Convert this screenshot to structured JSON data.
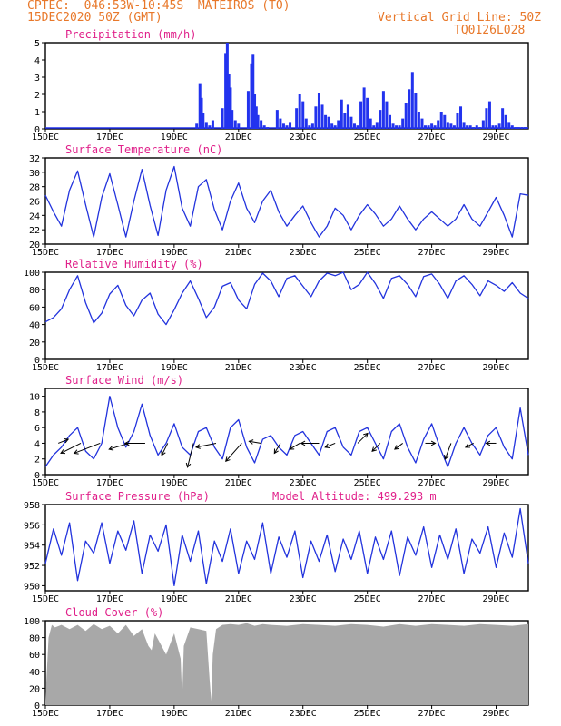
{
  "header": {
    "line1": "CPTEC:  046:53W-10:45S  MATEIROS (TO)",
    "line2": "15DEC2020 50Z (GMT)",
    "grid_note": "Vertical Grid Line: 50Z",
    "code": "TQ0126L028"
  },
  "colors": {
    "header": "#e8782a",
    "title": "#e0208a",
    "line": "#2233dd",
    "bar": "#2233ee",
    "cloud": "#a8a8a8",
    "arrow": "#000000"
  },
  "x_tick_labels": [
    "15DEC",
    "17DEC",
    "19DEC",
    "21DEC",
    "23DEC",
    "25DEC",
    "27DEC",
    "29DEC"
  ],
  "chart_data": [
    {
      "id": "precipitation",
      "type": "bar",
      "title": "Precipitation (mm/h)",
      "ylim": [
        0,
        5
      ],
      "yticks": [
        0,
        1,
        2,
        3,
        4,
        5
      ],
      "x_unit": "days since 15DEC 00Z",
      "xlim": [
        0,
        15
      ],
      "x": [
        4.7,
        4.8,
        4.85,
        4.9,
        5.0,
        5.1,
        5.2,
        5.5,
        5.6,
        5.65,
        5.7,
        5.75,
        5.8,
        5.9,
        6.0,
        6.3,
        6.4,
        6.45,
        6.5,
        6.55,
        6.6,
        6.7,
        6.8,
        6.9,
        7.2,
        7.3,
        7.4,
        7.5,
        7.6,
        7.8,
        7.9,
        8.0,
        8.1,
        8.2,
        8.3,
        8.4,
        8.5,
        8.6,
        8.7,
        8.8,
        8.9,
        9.0,
        9.1,
        9.2,
        9.3,
        9.4,
        9.5,
        9.6,
        9.7,
        9.8,
        9.9,
        10.0,
        10.1,
        10.2,
        10.3,
        10.4,
        10.5,
        10.6,
        10.7,
        10.8,
        10.9,
        11.0,
        11.1,
        11.2,
        11.3,
        11.4,
        11.5,
        11.6,
        11.7,
        11.8,
        11.9,
        12.0,
        12.1,
        12.2,
        12.3,
        12.4,
        12.5,
        12.6,
        12.7,
        12.8,
        12.9,
        13.0,
        13.1,
        13.2,
        13.3,
        13.4,
        13.5,
        13.6,
        13.7,
        13.8,
        13.9,
        14.0,
        14.1,
        14.2,
        14.3,
        14.4,
        14.5,
        14.6,
        14.7,
        14.8,
        14.9
      ],
      "values": [
        0.3,
        2.6,
        1.8,
        0.9,
        0.4,
        0.2,
        0.5,
        1.2,
        4.4,
        5.0,
        3.2,
        2.4,
        1.1,
        0.5,
        0.3,
        2.2,
        3.8,
        4.3,
        2.0,
        1.3,
        0.8,
        0.5,
        0.2,
        0.1,
        1.1,
        0.6,
        0.3,
        0.2,
        0.4,
        1.2,
        2.0,
        1.6,
        0.6,
        0.2,
        0.3,
        1.3,
        2.1,
        1.4,
        0.8,
        0.7,
        0.3,
        0.2,
        0.5,
        1.7,
        0.9,
        1.4,
        0.7,
        0.3,
        0.2,
        1.6,
        2.4,
        1.8,
        0.6,
        0.2,
        0.4,
        1.1,
        2.2,
        1.6,
        0.8,
        0.3,
        0.2,
        0.2,
        0.6,
        1.5,
        2.3,
        3.3,
        2.1,
        1.0,
        0.6,
        0.2,
        0.2,
        0.3,
        0.2,
        0.5,
        1.0,
        0.8,
        0.4,
        0.3,
        0.2,
        0.9,
        1.3,
        0.4,
        0.2,
        0.2,
        0.1,
        0.2,
        0.1,
        0.5,
        1.2,
        1.6,
        0.2,
        0.2,
        0.3,
        1.2,
        0.8,
        0.4,
        0.2,
        0.1,
        0.1,
        0.1,
        0.1
      ]
    },
    {
      "id": "temperature",
      "type": "line",
      "title": "Surface Temperature (nC)",
      "ylim": [
        20,
        32
      ],
      "yticks": [
        20,
        22,
        24,
        26,
        28,
        30,
        32
      ],
      "x_unit": "days since 15DEC 00Z",
      "xlim": [
        0,
        15
      ],
      "x": [
        0,
        0.25,
        0.5,
        0.75,
        1,
        1.25,
        1.5,
        1.75,
        2,
        2.25,
        2.5,
        2.75,
        3,
        3.25,
        3.5,
        3.75,
        4,
        4.25,
        4.5,
        4.75,
        5,
        5.25,
        5.5,
        5.75,
        6,
        6.25,
        6.5,
        6.75,
        7,
        7.25,
        7.5,
        7.75,
        8,
        8.25,
        8.5,
        8.75,
        9,
        9.25,
        9.5,
        9.75,
        10,
        10.25,
        10.5,
        10.75,
        11,
        11.25,
        11.5,
        11.75,
        12,
        12.25,
        12.5,
        12.75,
        13,
        13.25,
        13.5,
        13.75,
        14,
        14.25,
        14.5,
        14.75,
        15
      ],
      "values": [
        26.8,
        24.5,
        22.5,
        27.5,
        30.2,
        25.5,
        21.0,
        26.5,
        29.8,
        25.5,
        21.0,
        26.0,
        30.4,
        25.4,
        21.2,
        27.5,
        30.8,
        25.0,
        22.5,
        28.0,
        29.0,
        24.8,
        22.0,
        26.0,
        28.5,
        25.0,
        23.0,
        26.0,
        27.5,
        24.5,
        22.5,
        24.0,
        25.3,
        23.0,
        21.0,
        22.5,
        25.0,
        24.0,
        22.0,
        24.0,
        25.5,
        24.2,
        22.5,
        23.5,
        25.3,
        23.5,
        22.0,
        23.5,
        24.5,
        23.5,
        22.5,
        23.5,
        25.5,
        23.5,
        22.5,
        24.5,
        26.5,
        24.0,
        21.0,
        27.0,
        26.8
      ]
    },
    {
      "id": "humidity",
      "type": "line",
      "title": "Relative Humidity (%)",
      "ylim": [
        0,
        100
      ],
      "yticks": [
        0,
        20,
        40,
        60,
        80,
        100
      ],
      "x_unit": "days since 15DEC 00Z",
      "xlim": [
        0,
        15
      ],
      "x": [
        0,
        0.25,
        0.5,
        0.75,
        1,
        1.25,
        1.5,
        1.75,
        2,
        2.25,
        2.5,
        2.75,
        3,
        3.25,
        3.5,
        3.75,
        4,
        4.25,
        4.5,
        4.75,
        5,
        5.25,
        5.5,
        5.75,
        6,
        6.25,
        6.5,
        6.75,
        7,
        7.25,
        7.5,
        7.75,
        8,
        8.25,
        8.5,
        8.75,
        9,
        9.25,
        9.5,
        9.75,
        10,
        10.25,
        10.5,
        10.75,
        11,
        11.25,
        11.5,
        11.75,
        12,
        12.25,
        12.5,
        12.75,
        13,
        13.25,
        13.5,
        13.75,
        14,
        14.25,
        14.5,
        14.75,
        15
      ],
      "values": [
        43,
        48,
        58,
        80,
        96,
        65,
        42,
        53,
        75,
        85,
        62,
        50,
        68,
        76,
        52,
        40,
        57,
        76,
        90,
        70,
        48,
        60,
        84,
        88,
        68,
        58,
        86,
        99,
        90,
        72,
        93,
        96,
        84,
        72,
        90,
        99,
        96,
        100,
        80,
        86,
        100,
        87,
        70,
        93,
        96,
        86,
        72,
        95,
        98,
        86,
        70,
        90,
        96,
        86,
        73,
        90,
        85,
        78,
        88,
        76,
        70
      ]
    },
    {
      "id": "wind",
      "type": "line",
      "title": "Surface Wind (m/s)",
      "ylim": [
        0,
        11
      ],
      "yticks": [
        0,
        2,
        4,
        6,
        8,
        10
      ],
      "x_unit": "days since 15DEC 00Z",
      "xlim": [
        0,
        15
      ],
      "x": [
        0,
        0.25,
        0.5,
        0.75,
        1,
        1.25,
        1.5,
        1.75,
        2,
        2.25,
        2.5,
        2.75,
        3,
        3.25,
        3.5,
        3.75,
        4,
        4.25,
        4.5,
        4.75,
        5,
        5.25,
        5.5,
        5.75,
        6,
        6.25,
        6.5,
        6.75,
        7,
        7.25,
        7.5,
        7.75,
        8,
        8.25,
        8.5,
        8.75,
        9,
        9.25,
        9.5,
        9.75,
        10,
        10.25,
        10.5,
        10.75,
        11,
        11.25,
        11.5,
        11.75,
        12,
        12.25,
        12.5,
        12.75,
        13,
        13.25,
        13.5,
        13.75,
        14,
        14.25,
        14.5,
        14.75,
        15
      ],
      "values": [
        1,
        2.5,
        3.5,
        5,
        6,
        3,
        2,
        4,
        10,
        6,
        3.5,
        5.5,
        9,
        5,
        2.5,
        4,
        6.5,
        3.5,
        2.5,
        5.5,
        6,
        3.5,
        2,
        6,
        7,
        3.5,
        1.5,
        4.5,
        5,
        3.5,
        2.5,
        5,
        5.5,
        4,
        2.5,
        5.5,
        6,
        3.5,
        2.5,
        5.5,
        6,
        4,
        2,
        5.5,
        6.5,
        3.5,
        1.5,
        4.5,
        6.5,
        3.5,
        1,
        4,
        6,
        4,
        2.5,
        5,
        6,
        3.5,
        2,
        8.5,
        2.5
      ],
      "arrows": [
        {
          "x": 0.4,
          "u": 0.5,
          "v": 0.2
        },
        {
          "x": 1.1,
          "u": -1.0,
          "v": -0.5
        },
        {
          "x": 1.7,
          "u": -1.3,
          "v": -0.5
        },
        {
          "x": 2.6,
          "u": -1.0,
          "v": -0.3
        },
        {
          "x": 3.1,
          "u": -1.0,
          "v": 0.0
        },
        {
          "x": 3.8,
          "u": -0.3,
          "v": -0.6
        },
        {
          "x": 4.6,
          "u": -0.3,
          "v": -1.2
        },
        {
          "x": 5.3,
          "u": -1.0,
          "v": -0.2
        },
        {
          "x": 6.1,
          "u": -0.8,
          "v": -0.9
        },
        {
          "x": 6.7,
          "u": -0.6,
          "v": 0.1
        },
        {
          "x": 7.3,
          "u": -0.3,
          "v": -0.5
        },
        {
          "x": 7.9,
          "u": -0.5,
          "v": -0.3
        },
        {
          "x": 8.5,
          "u": -0.9,
          "v": 0.0
        },
        {
          "x": 9.0,
          "u": -0.5,
          "v": -0.2
        },
        {
          "x": 9.7,
          "u": 0.5,
          "v": 0.5
        },
        {
          "x": 10.4,
          "u": -0.4,
          "v": -0.4
        },
        {
          "x": 11.1,
          "u": -0.4,
          "v": -0.3
        },
        {
          "x": 11.8,
          "u": 0.5,
          "v": 0.0
        },
        {
          "x": 12.6,
          "u": -0.3,
          "v": -0.8
        },
        {
          "x": 13.3,
          "u": -0.4,
          "v": -0.2
        },
        {
          "x": 14.0,
          "u": -0.5,
          "v": 0.0
        }
      ]
    },
    {
      "id": "pressure",
      "type": "line",
      "title": "Surface Pressure (hPa)",
      "annotation": "Model Altitude: 499.293 m",
      "ylim": [
        949.5,
        958
      ],
      "yticks": [
        950,
        952,
        954,
        956,
        958
      ],
      "x_unit": "days since 15DEC 00Z",
      "xlim": [
        0,
        15
      ],
      "x": [
        0,
        0.25,
        0.5,
        0.75,
        1,
        1.25,
        1.5,
        1.75,
        2,
        2.25,
        2.5,
        2.75,
        3,
        3.25,
        3.5,
        3.75,
        4,
        4.25,
        4.5,
        4.75,
        5,
        5.25,
        5.5,
        5.75,
        6,
        6.25,
        6.5,
        6.75,
        7,
        7.25,
        7.5,
        7.75,
        8,
        8.25,
        8.5,
        8.75,
        9,
        9.25,
        9.5,
        9.75,
        10,
        10.25,
        10.5,
        10.75,
        11,
        11.25,
        11.5,
        11.75,
        12,
        12.25,
        12.5,
        12.75,
        13,
        13.25,
        13.5,
        13.75,
        14,
        14.25,
        14.5,
        14.75,
        15
      ],
      "values": [
        952.2,
        955.6,
        953.0,
        956.2,
        950.5,
        954.4,
        953.2,
        956.2,
        952.2,
        955.4,
        953.5,
        956.4,
        951.2,
        955.0,
        953.4,
        956.0,
        950.0,
        955.0,
        952.4,
        955.4,
        950.2,
        954.4,
        952.4,
        955.6,
        951.2,
        954.4,
        952.6,
        956.2,
        951.2,
        954.8,
        952.8,
        955.4,
        950.8,
        954.4,
        952.4,
        955.0,
        951.4,
        954.6,
        952.6,
        955.4,
        951.2,
        954.8,
        952.6,
        955.4,
        951.0,
        954.8,
        953.0,
        955.8,
        951.8,
        955.0,
        952.6,
        955.6,
        951.2,
        954.6,
        953.2,
        955.8,
        951.8,
        955.2,
        952.8,
        957.6,
        952.2
      ]
    },
    {
      "id": "cloud",
      "type": "area",
      "title": "Cloud Cover (%)",
      "ylim": [
        0,
        100
      ],
      "yticks": [
        0,
        20,
        40,
        60,
        80,
        100
      ],
      "x_unit": "days since 15DEC 00Z",
      "xlim": [
        0,
        15
      ],
      "x": [
        0,
        0.1,
        0.2,
        0.3,
        0.5,
        0.75,
        1,
        1.25,
        1.5,
        1.75,
        2,
        2.25,
        2.5,
        2.75,
        3,
        3.1,
        3.2,
        3.3,
        3.4,
        3.5,
        3.75,
        4,
        4.2,
        4.25,
        4.3,
        4.5,
        4.75,
        5,
        5.1,
        5.15,
        5.2,
        5.3,
        5.5,
        5.75,
        6,
        6.25,
        6.5,
        6.75,
        7,
        7.5,
        8,
        8.5,
        9,
        9.5,
        10,
        10.5,
        11,
        11.5,
        12,
        12.5,
        13,
        13.5,
        14,
        14.5,
        15
      ],
      "values": [
        5,
        80,
        95,
        92,
        95,
        90,
        95,
        88,
        96,
        90,
        94,
        85,
        95,
        82,
        90,
        80,
        70,
        65,
        85,
        78,
        60,
        85,
        55,
        8,
        70,
        92,
        90,
        88,
        30,
        5,
        60,
        90,
        95,
        96,
        95,
        97,
        94,
        96,
        95,
        94,
        96,
        95,
        94,
        96,
        95,
        93,
        96,
        94,
        96,
        95,
        94,
        96,
        95,
        94,
        96
      ]
    }
  ]
}
